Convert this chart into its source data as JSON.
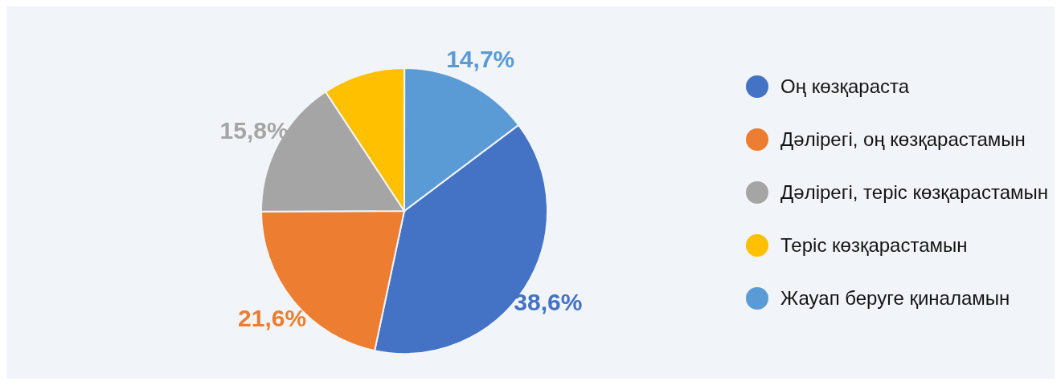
{
  "chart_data": {
    "type": "pie",
    "categories": [
      "Оң көзқараста",
      "Дәлірегі, оң көзқарастамын",
      "Дәлірегі, теріс көзқарастамын",
      "Теріс көзқарастамын",
      "Жауап беруге қиналамын"
    ],
    "values": [
      38.6,
      21.6,
      15.8,
      9.3,
      14.7
    ],
    "colors": [
      "#4472c4",
      "#ed7d31",
      "#a5a5a5",
      "#ffc000",
      "#5b9bd5"
    ],
    "value_labels": [
      "38,6%",
      "21,6%",
      "15,8%",
      null,
      "14,7%"
    ],
    "legend": "right"
  }
}
